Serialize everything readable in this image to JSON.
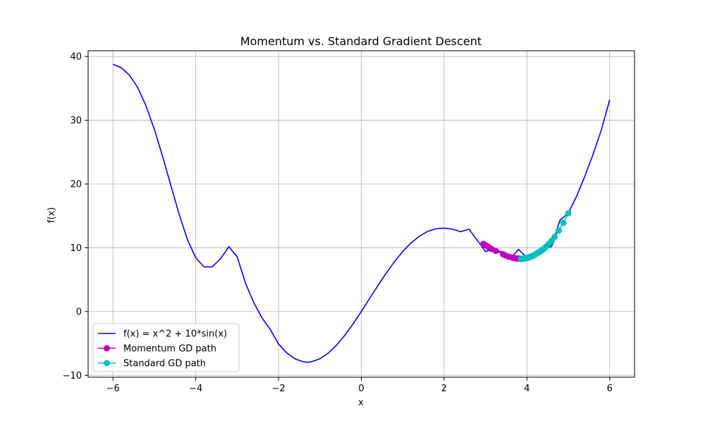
{
  "chart_data": {
    "type": "line",
    "title": "Momentum vs. Standard Gradient Descent",
    "xlabel": "x",
    "ylabel": "f(x)",
    "xlim": [
      -6.6,
      6.6
    ],
    "ylim": [
      -10.3,
      40.9
    ],
    "xticks": [
      -6,
      -4,
      -2,
      0,
      2,
      4,
      6
    ],
    "xtick_labels": [
      "−6",
      "−4",
      "−2",
      "0",
      "2",
      "4",
      "6"
    ],
    "yticks": [
      -10,
      0,
      10,
      20,
      30,
      40
    ],
    "ytick_labels": [
      "−10",
      "0",
      "10",
      "20",
      "30",
      "40"
    ],
    "grid": true,
    "legend_position": "lower-left",
    "series": [
      {
        "name": "f(x) = x^2 + 10*sin(x)",
        "kind": "line",
        "color": "#0000ff",
        "x": [
          -6.0,
          -5.8,
          -5.6,
          -5.4,
          -5.2,
          -5.0,
          -4.8,
          -4.6,
          -4.4,
          -4.2,
          -4.0,
          -3.8,
          -3.6,
          -3.4,
          -3.2,
          -3.0,
          -2.8,
          -2.6,
          -2.4,
          -2.2,
          -2.0,
          -1.8,
          -1.6,
          -1.4,
          -1.3,
          -1.2,
          -1.0,
          -0.8,
          -0.6,
          -0.4,
          -0.2,
          0.0,
          0.2,
          0.4,
          0.6,
          0.8,
          1.0,
          1.2,
          1.4,
          1.6,
          1.8,
          2.0,
          2.2,
          2.4,
          2.6,
          2.8,
          3.0,
          3.2,
          3.4,
          3.6,
          3.8,
          4.0,
          4.2,
          4.4,
          4.6,
          4.8,
          5.0,
          5.2,
          5.4,
          5.6,
          5.8,
          6.0
        ],
        "y": [
          38.79,
          38.25,
          37.07,
          35.09,
          32.24,
          28.59,
          24.31,
          19.73,
          15.22,
          11.28,
          8.43,
          6.99,
          7.02,
          8.29,
          10.16,
          8.59,
          4.49,
          1.43,
          -0.99,
          -2.8,
          -5.09,
          -6.5,
          -7.43,
          -7.89,
          -7.95,
          -7.88,
          -7.41,
          -6.53,
          -5.29,
          -3.73,
          -1.95,
          0.0,
          2.03,
          4.05,
          6.01,
          7.81,
          9.41,
          10.76,
          11.81,
          12.56,
          12.98,
          13.09,
          12.92,
          12.51,
          12.92,
          11.19,
          9.41,
          9.82,
          9.29,
          8.24,
          9.75,
          8.43,
          9.23,
          9.82,
          10.22,
          14.34,
          15.41,
          18.07,
          21.21,
          24.67,
          28.48,
          33.21
        ]
      },
      {
        "name": "Momentum GD path",
        "kind": "points",
        "color": "#bf00bf",
        "x": [
          2.95,
          3.0,
          3.05,
          3.1,
          3.15,
          3.25,
          3.42,
          3.48,
          3.56,
          3.63,
          3.67,
          3.72,
          3.76,
          3.79,
          3.81
        ],
        "y": [
          10.6,
          10.4,
          10.2,
          10.0,
          9.8,
          9.5,
          9.0,
          8.8,
          8.6,
          8.5,
          8.4,
          8.35,
          8.3,
          8.3,
          8.3
        ]
      },
      {
        "name": "Standard GD path",
        "kind": "points",
        "color": "#00bfbf",
        "x": [
          5.0,
          4.88,
          4.77,
          4.67,
          4.6,
          4.53,
          4.47,
          4.42,
          4.37,
          4.33,
          4.29,
          4.25,
          4.22,
          4.19,
          4.16,
          4.13,
          4.11,
          4.09,
          4.07,
          4.05,
          4.03,
          4.01,
          3.99,
          3.97,
          3.95,
          3.93,
          3.91,
          3.89,
          3.87,
          3.86
        ],
        "y": [
          15.4,
          13.9,
          12.7,
          11.7,
          11.1,
          10.6,
          10.2,
          9.9,
          9.65,
          9.45,
          9.3,
          9.15,
          9.0,
          8.9,
          8.8,
          8.7,
          8.65,
          8.6,
          8.55,
          8.5,
          8.45,
          8.42,
          8.39,
          8.36,
          8.33,
          8.31,
          8.29,
          8.27,
          8.25,
          8.24
        ]
      }
    ]
  }
}
